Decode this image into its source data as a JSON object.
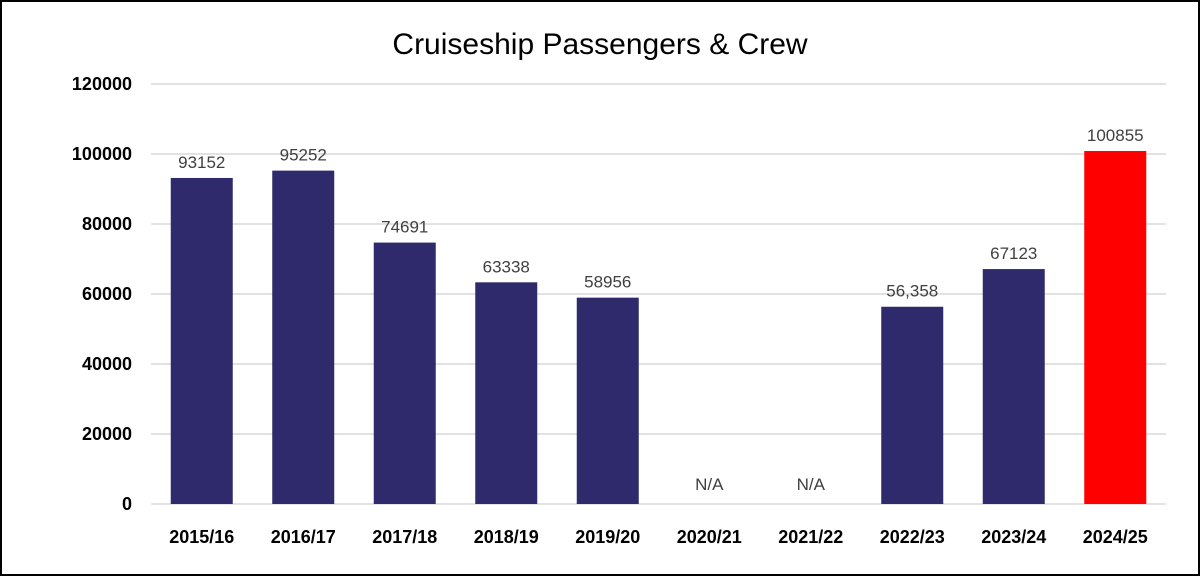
{
  "chart_data": {
    "type": "bar",
    "title": "Cruiseship Passengers & Crew",
    "xlabel": "",
    "ylabel": "",
    "categories": [
      "2015/16",
      "2016/17",
      "2017/18",
      "2018/19",
      "2019/20",
      "2020/21",
      "2021/22",
      "2022/23",
      "2023/24",
      "2024/25"
    ],
    "values": [
      93152,
      95252,
      74691,
      63338,
      58956,
      null,
      null,
      56358,
      67123,
      100855
    ],
    "data_labels": [
      "93152",
      "95252",
      "74691",
      "63338",
      "58956",
      "N/A",
      "N/A",
      "56,358",
      "67123",
      "100855"
    ],
    "bar_colors": [
      "#2e2a6b",
      "#2e2a6b",
      "#2e2a6b",
      "#2e2a6b",
      "#2e2a6b",
      "#2e2a6b",
      "#2e2a6b",
      "#2e2a6b",
      "#2e2a6b",
      "#ff0000"
    ],
    "ylim": [
      0,
      120000
    ],
    "yticks": [
      "0",
      "20000",
      "40000",
      "60000",
      "80000",
      "100000",
      "120000"
    ],
    "grid": true,
    "legend": "none"
  }
}
